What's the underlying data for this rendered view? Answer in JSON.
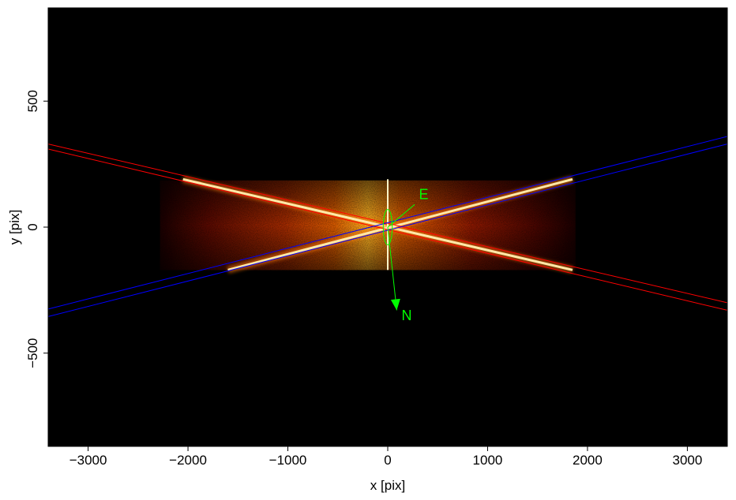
{
  "chart_data": {
    "type": "heatmap",
    "xlabel": "x [pix]",
    "ylabel": "y [pix]",
    "xlim": [
      -3400,
      3400
    ],
    "ylim": [
      -870,
      870
    ],
    "x_ticks": [
      -3000,
      -2000,
      -1000,
      0,
      1000,
      2000,
      3000
    ],
    "x_tick_labels": [
      "−3000",
      "−2000",
      "−1000",
      "0",
      "1000",
      "2000",
      "3000"
    ],
    "y_ticks": [
      -500,
      0,
      500
    ],
    "y_tick_labels": [
      "−500",
      "0",
      "500"
    ],
    "image_extent": {
      "x": [
        -2280,
        1880
      ],
      "y": [
        -170,
        185
      ]
    },
    "colormap": "heat",
    "colors": {
      "background": "#000000",
      "red_regions": "#ff0000",
      "blue_regions": "#0000ff",
      "compass": "#00ff00"
    },
    "red_region_lines": [
      {
        "x1": -3400,
        "y1": 330,
        "x2": 3400,
        "y2": -300
      },
      {
        "x1": -3400,
        "y1": 310,
        "x2": 3400,
        "y2": -330
      }
    ],
    "blue_region_lines": [
      {
        "x1": -3400,
        "y1": -325,
        "x2": 3400,
        "y2": 360
      },
      {
        "x1": -3400,
        "y1": -355,
        "x2": 3400,
        "y2": 330
      }
    ],
    "source_ellipse": {
      "x": 0,
      "y": 0,
      "rx": 45,
      "ry": 70
    },
    "compass": {
      "origin": [
        0,
        0
      ],
      "east": {
        "tip": [
          270,
          90
        ],
        "label_pos": [
          360,
          130
        ],
        "label": "E"
      },
      "north": {
        "tip": [
          90,
          -330
        ],
        "label_pos": [
          190,
          -350
        ],
        "label": "N"
      }
    },
    "bright_traces": [
      {
        "from": [
          -2050,
          190
        ],
        "to": [
          1850,
          -170
        ]
      },
      {
        "from": [
          -1600,
          -170
        ],
        "to": [
          1850,
          190
        ]
      }
    ],
    "vertical_trace": {
      "x": 0,
      "y": [
        -170,
        190
      ]
    }
  }
}
